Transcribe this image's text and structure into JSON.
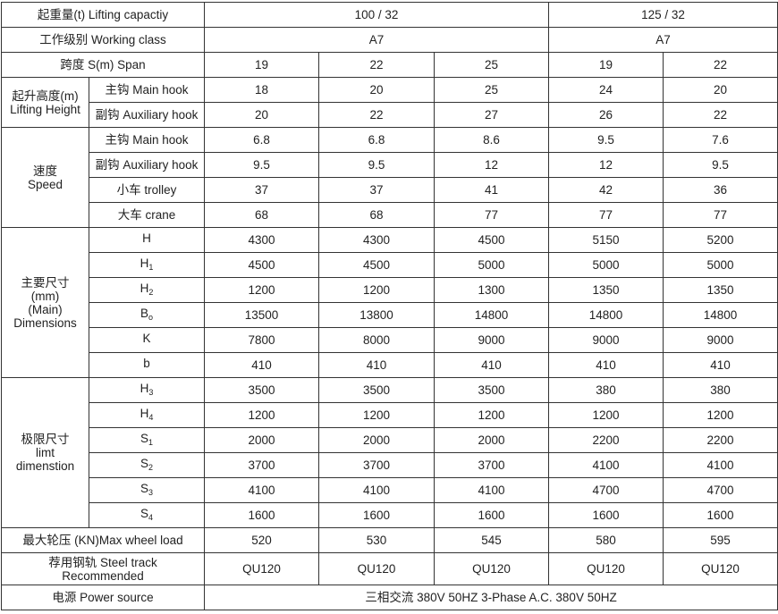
{
  "capacity": {
    "label": "起重量(t) Lifting capactiy",
    "groups": [
      "100 / 32",
      "125 / 32"
    ]
  },
  "working_class": {
    "label": "工作级别 Working class",
    "values": [
      "A7",
      "A7"
    ]
  },
  "span": {
    "label": "跨度 S(m) Span",
    "values": [
      "19",
      "22",
      "25",
      "19",
      "22"
    ]
  },
  "lifting_height": {
    "label_cn": "起升高度(m)",
    "label_en": "Lifting Height",
    "rows": [
      {
        "label": "主钩 Main hook",
        "values": [
          "18",
          "20",
          "25",
          "24",
          "20"
        ]
      },
      {
        "label": "副钩 Auxiliary hook",
        "values": [
          "20",
          "22",
          "27",
          "26",
          "22"
        ]
      }
    ]
  },
  "speed": {
    "label_cn": "速度",
    "label_en": "Speed",
    "rows": [
      {
        "label": "主钩 Main hook",
        "values": [
          "6.8",
          "6.8",
          "8.6",
          "9.5",
          "7.6"
        ]
      },
      {
        "label": "副钩 Auxiliary hook",
        "values": [
          "9.5",
          "9.5",
          "12",
          "12",
          "9.5"
        ]
      },
      {
        "label": "小车 trolley",
        "values": [
          "37",
          "37",
          "41",
          "42",
          "36"
        ]
      },
      {
        "label": "大车 crane",
        "values": [
          "68",
          "68",
          "77",
          "77",
          "77"
        ]
      }
    ]
  },
  "dimensions": {
    "label_lines": [
      "主要尺寸",
      "(mm)",
      "(Main)",
      "Dimensions"
    ],
    "rows": [
      {
        "sym": "H",
        "sub": "",
        "values": [
          "4300",
          "4300",
          "4500",
          "5150",
          "5200"
        ]
      },
      {
        "sym": "H",
        "sub": "1",
        "values": [
          "4500",
          "4500",
          "5000",
          "5000",
          "5000"
        ]
      },
      {
        "sym": "H",
        "sub": "2",
        "values": [
          "1200",
          "1200",
          "1300",
          "1350",
          "1350"
        ]
      },
      {
        "sym": "B",
        "sub": "o",
        "values": [
          "13500",
          "13800",
          "14800",
          "14800",
          "14800"
        ]
      },
      {
        "sym": "K",
        "sub": "",
        "values": [
          "7800",
          "8000",
          "9000",
          "9000",
          "9000"
        ]
      },
      {
        "sym": "b",
        "sub": "",
        "values": [
          "410",
          "410",
          "410",
          "410",
          "410"
        ]
      }
    ]
  },
  "limit": {
    "label_lines": [
      "极限尺寸",
      "limt",
      "dimenstion"
    ],
    "rows": [
      {
        "sym": "H",
        "sub": "3",
        "values": [
          "3500",
          "3500",
          "3500",
          "380",
          "380"
        ]
      },
      {
        "sym": "H",
        "sub": "4",
        "values": [
          "1200",
          "1200",
          "1200",
          "1200",
          "1200"
        ]
      },
      {
        "sym": "S",
        "sub": "1",
        "values": [
          "2000",
          "2000",
          "2000",
          "2200",
          "2200"
        ]
      },
      {
        "sym": "S",
        "sub": "2",
        "values": [
          "3700",
          "3700",
          "3700",
          "4100",
          "4100"
        ]
      },
      {
        "sym": "S",
        "sub": "3",
        "values": [
          "4100",
          "4100",
          "4100",
          "4700",
          "4700"
        ]
      },
      {
        "sym": "S",
        "sub": "4",
        "values": [
          "1600",
          "1600",
          "1600",
          "1600",
          "1600"
        ]
      }
    ]
  },
  "wheel_load": {
    "label": "最大轮压 (KN)Max wheel load",
    "values": [
      "520",
      "530",
      "545",
      "580",
      "595"
    ]
  },
  "steel_track": {
    "label_line1": "荐用钢轨 Steel track",
    "label_line2": "Recommended",
    "values": [
      "QU120",
      "QU120",
      "QU120",
      "QU120",
      "QU120"
    ]
  },
  "power": {
    "label": "电源 Power source",
    "value": "三相交流 380V  50HZ  3-Phase A.C. 380V  50HZ"
  }
}
